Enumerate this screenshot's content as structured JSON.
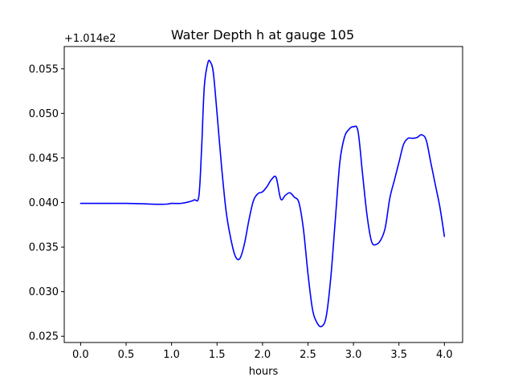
{
  "chart_data": {
    "type": "line",
    "title": "Water Depth h at gauge 105",
    "xlabel": "hours",
    "ylabel": "",
    "offset_label": "+1.014e2",
    "xlim": [
      -0.18,
      4.2
    ],
    "ylim": [
      0.0243,
      0.0575
    ],
    "xticks": [
      0.0,
      0.5,
      1.0,
      1.5,
      2.0,
      2.5,
      3.0,
      3.5,
      4.0
    ],
    "xtick_labels": [
      "0.0",
      "0.5",
      "1.0",
      "1.5",
      "2.0",
      "2.5",
      "3.0",
      "3.5",
      "4.0"
    ],
    "yticks": [
      0.025,
      0.03,
      0.035,
      0.04,
      0.045,
      0.05,
      0.055
    ],
    "ytick_labels": [
      "0.025",
      "0.030",
      "0.035",
      "0.040",
      "0.045",
      "0.050",
      "0.055"
    ],
    "grid": false,
    "series": [
      {
        "color": "#0000ff",
        "x": [
          0.0,
          0.5,
          0.9,
          1.0,
          1.1,
          1.2,
          1.25,
          1.3,
          1.33,
          1.36,
          1.4,
          1.43,
          1.46,
          1.5,
          1.55,
          1.6,
          1.65,
          1.7,
          1.75,
          1.8,
          1.85,
          1.9,
          1.95,
          2.0,
          2.05,
          2.1,
          2.15,
          2.2,
          2.25,
          2.3,
          2.35,
          2.4,
          2.45,
          2.5,
          2.55,
          2.6,
          2.65,
          2.7,
          2.75,
          2.8,
          2.85,
          2.9,
          2.95,
          3.0,
          3.05,
          3.1,
          3.15,
          3.2,
          3.25,
          3.3,
          3.35,
          3.4,
          3.45,
          3.5,
          3.55,
          3.6,
          3.65,
          3.7,
          3.75,
          3.8,
          3.85,
          3.9,
          3.95,
          4.0
        ],
        "y": [
          0.0399,
          0.0399,
          0.0398,
          0.0399,
          0.0399,
          0.0401,
          0.0403,
          0.0407,
          0.046,
          0.053,
          0.0557,
          0.0557,
          0.0545,
          0.05,
          0.044,
          0.039,
          0.036,
          0.034,
          0.0337,
          0.0353,
          0.038,
          0.0402,
          0.041,
          0.0412,
          0.0418,
          0.0426,
          0.0428,
          0.0404,
          0.0408,
          0.0411,
          0.0406,
          0.04,
          0.037,
          0.032,
          0.028,
          0.0265,
          0.0261,
          0.0272,
          0.0315,
          0.038,
          0.0445,
          0.0473,
          0.0482,
          0.0485,
          0.048,
          0.0432,
          0.0385,
          0.0356,
          0.0353,
          0.0358,
          0.0372,
          0.0405,
          0.0425,
          0.0445,
          0.0465,
          0.0472,
          0.0472,
          0.0473,
          0.0476,
          0.047,
          0.0445,
          0.042,
          0.0395,
          0.0362
        ]
      }
    ]
  }
}
